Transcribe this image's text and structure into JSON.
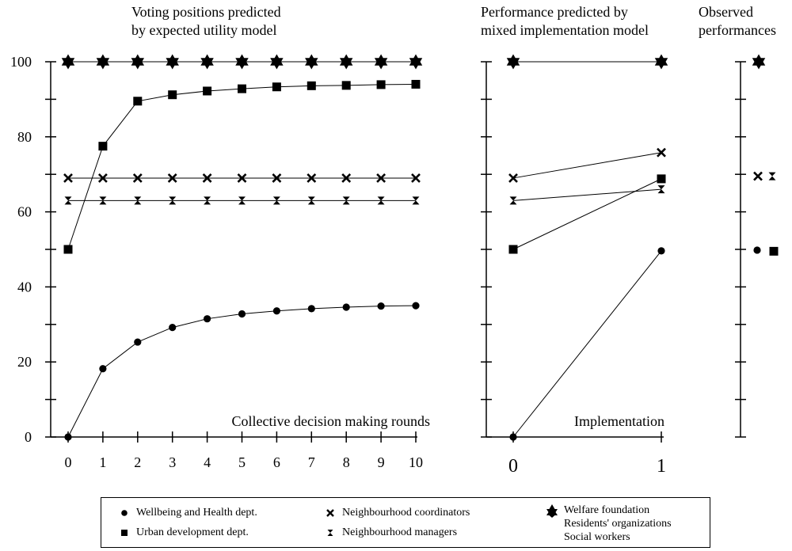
{
  "panels": {
    "left": {
      "title_line1": "Voting positions predicted",
      "title_line2": "by expected utility model",
      "annotation": "Collective decision making rounds"
    },
    "middle": {
      "title_line1": "Performance predicted by",
      "title_line2": "mixed implementation model",
      "annotation": "Implementation"
    },
    "right": {
      "title_line1": "Observed",
      "title_line2": "performances"
    }
  },
  "legend": {
    "items": [
      {
        "label": "Wellbeing and Health dept.",
        "marker": "circle"
      },
      {
        "label": "Urban development dept.",
        "marker": "square"
      },
      {
        "label": "Neighbourhood coordinators",
        "marker": "cross"
      },
      {
        "label": "Neighbourhood managers",
        "marker": "hourglass"
      },
      {
        "label": "Welfare foundation",
        "marker": "star"
      },
      {
        "label": "Residents' organizations",
        "marker": "star"
      },
      {
        "label": "Social workers",
        "marker": "star"
      }
    ]
  },
  "chart_data": [
    {
      "type": "line",
      "title": "Voting positions predicted by expected utility model",
      "xlabel": "Collective decision making rounds",
      "ylabel": "",
      "x": [
        0,
        1,
        2,
        3,
        4,
        5,
        6,
        7,
        8,
        9,
        10
      ],
      "ylim": [
        0,
        100
      ],
      "yticks": [
        0,
        20,
        40,
        60,
        80,
        100
      ],
      "series": [
        {
          "name": "Welfare foundation / Residents' organizations / Social workers",
          "marker": "star",
          "values": [
            100,
            100,
            100,
            100,
            100,
            100,
            100,
            100,
            100,
            100,
            100
          ]
        },
        {
          "name": "Urban development dept.",
          "marker": "square",
          "values": [
            50,
            77.5,
            89.5,
            91.2,
            92.2,
            92.8,
            93.3,
            93.6,
            93.7,
            93.9,
            94
          ]
        },
        {
          "name": "Neighbourhood coordinators",
          "marker": "cross",
          "values": [
            69,
            69,
            69,
            69,
            69,
            69,
            69,
            69,
            69,
            69,
            69
          ]
        },
        {
          "name": "Neighbourhood managers",
          "marker": "hourglass",
          "values": [
            63,
            63,
            63,
            63,
            63,
            63,
            63,
            63,
            63,
            63,
            63
          ]
        },
        {
          "name": "Wellbeing and Health dept.",
          "marker": "circle",
          "values": [
            0,
            18.2,
            25.3,
            29.2,
            31.5,
            32.8,
            33.6,
            34.2,
            34.6,
            34.9,
            35
          ]
        }
      ]
    },
    {
      "type": "line",
      "title": "Performance predicted by mixed implementation model",
      "xlabel": "Implementation",
      "x": [
        0,
        1
      ],
      "ylim": [
        0,
        100
      ],
      "series": [
        {
          "name": "Welfare foundation / Residents' organizations / Social workers",
          "marker": "star",
          "values": [
            100,
            100
          ]
        },
        {
          "name": "Neighbourhood coordinators",
          "marker": "cross",
          "values": [
            69,
            75.8
          ]
        },
        {
          "name": "Urban development dept.",
          "marker": "square",
          "values": [
            50,
            68.8
          ]
        },
        {
          "name": "Neighbourhood managers",
          "marker": "hourglass",
          "values": [
            63,
            66
          ]
        },
        {
          "name": "Wellbeing and Health dept.",
          "marker": "circle",
          "values": [
            0,
            49.6
          ]
        }
      ]
    },
    {
      "type": "scatter",
      "title": "Observed performances",
      "ylim": [
        0,
        100
      ],
      "points": [
        {
          "name": "Welfare foundation / Residents' organizations / Social workers",
          "marker": "star",
          "y": 100
        },
        {
          "name": "Neighbourhood coordinators",
          "marker": "cross",
          "y": 69.5
        },
        {
          "name": "Neighbourhood managers",
          "marker": "hourglass",
          "y": 69.5
        },
        {
          "name": "Wellbeing and Health dept.",
          "marker": "circle",
          "y": 49.8
        },
        {
          "name": "Urban development dept.",
          "marker": "square",
          "y": 49.5
        }
      ]
    }
  ]
}
